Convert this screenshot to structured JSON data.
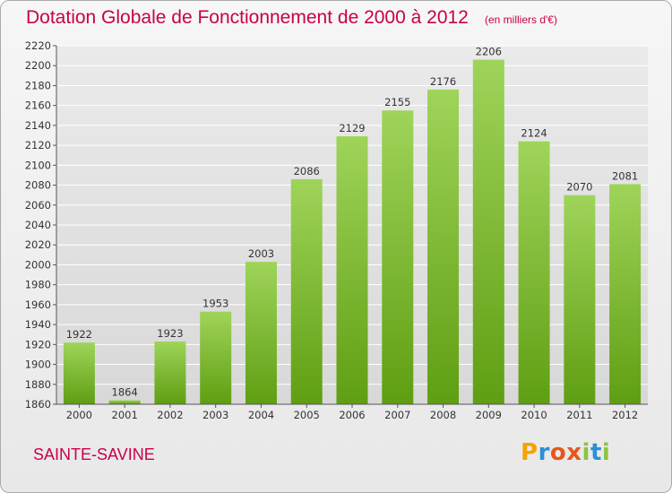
{
  "header": {
    "title": "Dotation Globale de Fonctionnement de 2000 à 2012",
    "subtitle": "(en milliers d'€)"
  },
  "footer": {
    "city": "SAINTE-SAVINE",
    "logo": {
      "letters": [
        "P",
        "r",
        "o",
        "x",
        "i",
        "t",
        "i"
      ],
      "colors": [
        "#f5a300",
        "#2a8fd8",
        "#e8561b",
        "#e8561b",
        "#8bc53f",
        "#2a8fd8",
        "#8bc53f"
      ]
    }
  },
  "chart_data": {
    "type": "bar",
    "title": "Dotation Globale de Fonctionnement de 2000 à 2012",
    "subtitle": "(en milliers d'€)",
    "categories": [
      "2000",
      "2001",
      "2002",
      "2003",
      "2004",
      "2005",
      "2006",
      "2007",
      "2008",
      "2009",
      "2010",
      "2011",
      "2012"
    ],
    "values": [
      1922,
      1864,
      1923,
      1953,
      2003,
      2086,
      2129,
      2155,
      2176,
      2206,
      2124,
      2070,
      2081
    ],
    "ylim": [
      1860,
      2220
    ],
    "ytick_step": 20,
    "grid": true,
    "legend": "none",
    "colors": {
      "bar_top": "#9fd45a",
      "bar_bottom": "#5f9e12",
      "grid": "#ffffff",
      "plot_bg": "#dcdcdc"
    }
  }
}
